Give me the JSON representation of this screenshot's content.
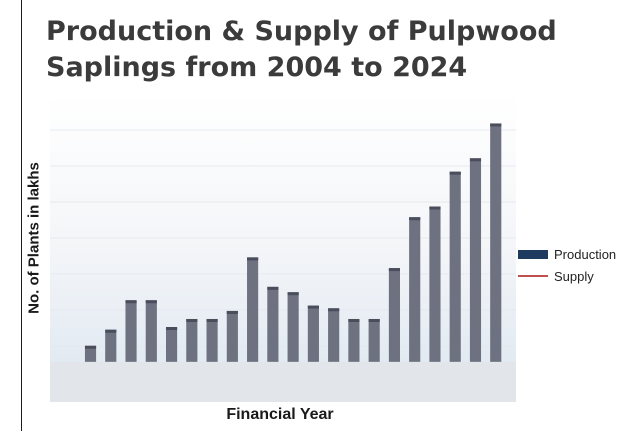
{
  "chart_data": {
    "type": "bar",
    "title": [
      "Production & Supply of Pulpwood",
      "Saplings from 2004 to 2024"
    ],
    "xlabel": "Financial Year",
    "ylabel": "No. of Plants in lakhs",
    "ylim": [
      0,
      100
    ],
    "legend_position": "right",
    "colors": {
      "production": "#1e3a5f",
      "supply": "#c0504d",
      "bar_tint": "#6e7180"
    },
    "series": [
      {
        "name": "Production",
        "values": [
          6,
          12,
          23,
          23,
          13,
          16,
          16,
          19,
          39,
          28,
          26,
          21,
          20,
          16,
          16,
          35,
          54,
          58,
          71,
          76,
          89
        ]
      },
      {
        "name": "Supply",
        "values": []
      }
    ]
  }
}
